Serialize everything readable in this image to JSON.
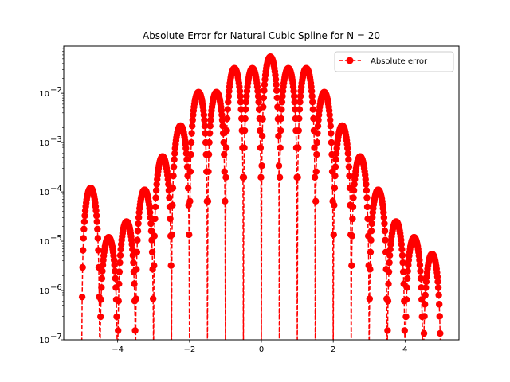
{
  "chart_data": {
    "type": "line",
    "title": "Absolute Error for Natural Cubic Spline for N = 20",
    "xlabel": "",
    "ylabel": "",
    "xlim": [
      -5.5,
      5.5
    ],
    "ylim": [
      1e-07,
      0.09
    ],
    "yscale": "log",
    "grid": false,
    "legend_position": "top-right",
    "x_ticks": [
      -4,
      -2,
      0,
      2,
      4
    ],
    "x_tick_labels": [
      "−4",
      "−2",
      "0",
      "2",
      "4"
    ],
    "y_ticks": [
      1e-07,
      1e-06,
      1e-05,
      0.0001,
      0.001,
      0.01
    ],
    "y_tick_labels": [
      {
        "base": "10",
        "exp": "−7"
      },
      {
        "base": "10",
        "exp": "−6"
      },
      {
        "base": "10",
        "exp": "−5"
      },
      {
        "base": "10",
        "exp": "−4"
      },
      {
        "base": "10",
        "exp": "−3"
      },
      {
        "base": "10",
        "exp": "−2"
      }
    ],
    "series": [
      {
        "name": "Absolute error",
        "color": "#ff0000",
        "line_style": "dashed",
        "marker": "circle",
        "knots": [
          -5,
          -4.5,
          -4,
          -3.5,
          -3,
          -2.5,
          -2,
          -1.5,
          -1,
          -0.5,
          0,
          0.5,
          1,
          1.5,
          2,
          2.5,
          3,
          3.5,
          4,
          4.5,
          5
        ],
        "lobe_peaks": [
          {
            "x": -4.75,
            "y": 0.00012
          },
          {
            "x": -4.25,
            "y": 1.2e-05
          },
          {
            "x": -3.75,
            "y": 2.5e-05
          },
          {
            "x": -3.25,
            "y": 0.00011
          },
          {
            "x": -2.75,
            "y": 0.00052
          },
          {
            "x": -2.25,
            "y": 0.0022
          },
          {
            "x": -1.75,
            "y": 0.0105
          },
          {
            "x": -1.25,
            "y": 0.0105
          },
          {
            "x": -0.75,
            "y": 0.032
          },
          {
            "x": -0.25,
            "y": 0.032
          },
          {
            "x": 0.25,
            "y": 0.055
          },
          {
            "x": 0.75,
            "y": 0.032
          },
          {
            "x": 1.25,
            "y": 0.032
          },
          {
            "x": 1.75,
            "y": 0.0105
          },
          {
            "x": 2.25,
            "y": 0.0022
          },
          {
            "x": 2.75,
            "y": 0.00052
          },
          {
            "x": 3.25,
            "y": 0.00011
          },
          {
            "x": 3.75,
            "y": 2.5e-05
          },
          {
            "x": 4.25,
            "y": 1.2e-05
          },
          {
            "x": 4.75,
            "y": 5.5e-06
          }
        ]
      }
    ]
  }
}
